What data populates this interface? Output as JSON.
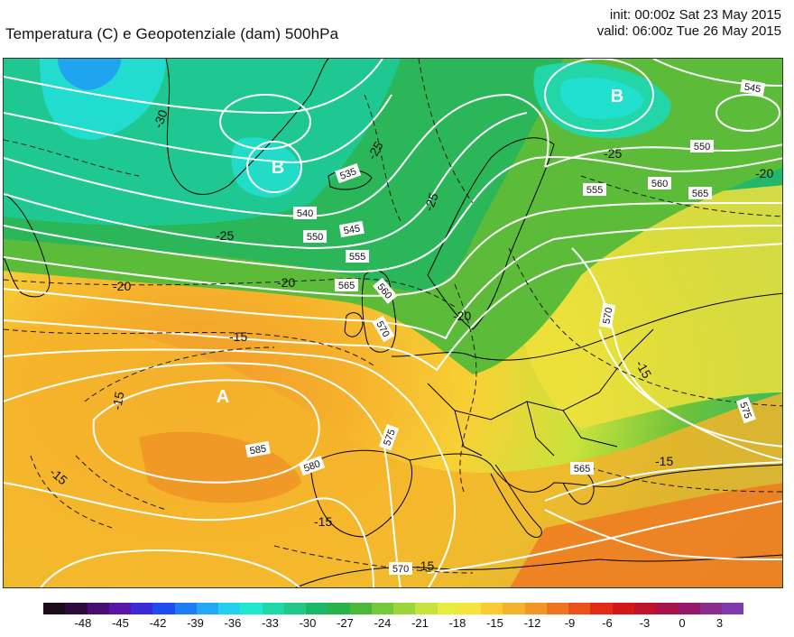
{
  "header": {
    "title": "Temperatura (C) e Geopotenziale (dam) 500hPa",
    "init": "init: 00:00z Sat 23 May 2015",
    "valid": "valid: 06:00z Tue 26 May 2015"
  },
  "map": {
    "pressure_centers": [
      {
        "label": "B",
        "type": "low",
        "region": "south of Greenland"
      },
      {
        "label": "B",
        "type": "low",
        "region": "Russia / White Sea"
      },
      {
        "label": "A",
        "type": "high",
        "region": "Azores"
      }
    ],
    "geopotential_labels": [
      "535",
      "540",
      "545",
      "550",
      "555",
      "560",
      "565",
      "570",
      "575",
      "580",
      "585",
      "545",
      "550",
      "555",
      "560",
      "565",
      "570",
      "570",
      "575",
      "565"
    ],
    "temperature_labels": [
      "-30",
      "-25",
      "-25",
      "-25",
      "-25",
      "-20",
      "-20",
      "-20",
      "-20",
      "-15",
      "-15",
      "-15",
      "-15",
      "-15",
      "-15",
      "-15"
    ],
    "colors": {
      "isohypse": "#ffffff",
      "isotherm": "#222222",
      "coastline": "#000000"
    }
  },
  "colorbar": {
    "ticks": [
      "-48",
      "-45",
      "-42",
      "-39",
      "-36",
      "-33",
      "-30",
      "-27",
      "-24",
      "-21",
      "-18",
      "-15",
      "-12",
      "-9",
      "-6",
      "-3",
      "0",
      "3"
    ],
    "colors": [
      "#1a0a1a",
      "#2e0a3a",
      "#4a0c70",
      "#5a14a8",
      "#3a2ad8",
      "#1d4cf0",
      "#1e7cf5",
      "#24a8f5",
      "#22d0ee",
      "#1fe8d0",
      "#1ed8a8",
      "#22c888",
      "#1cb86a",
      "#28b24a",
      "#4cb83a",
      "#74c83a",
      "#9cd63c",
      "#c6e23e",
      "#e8ec3e",
      "#f6e43c",
      "#f8cc32",
      "#f6b22c",
      "#f29626",
      "#ee7420",
      "#ea521c",
      "#e22c18",
      "#d41818",
      "#c0142c",
      "#a8124a",
      "#96186a",
      "#8a2e8e",
      "#7e3aae"
    ]
  }
}
